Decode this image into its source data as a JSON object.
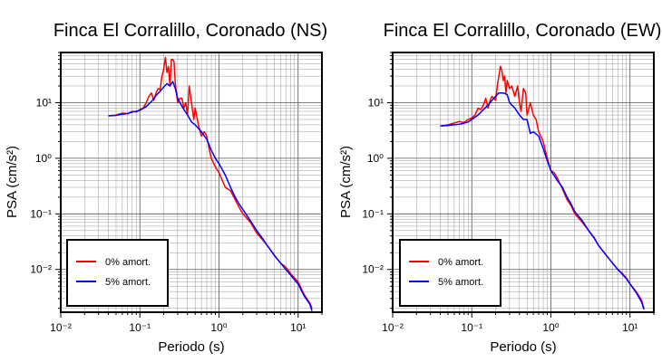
{
  "chart_data": [
    {
      "type": "line",
      "title": "Finca El Corralillo, Coronado (NS)",
      "xlabel": "Periodo (s)",
      "ylabel": "PSA (cm/s²)",
      "xscale": "log",
      "yscale": "log",
      "xlim": [
        0.01,
        20
      ],
      "ylim": [
        0.0017,
        80
      ],
      "xticks": [
        0.01,
        0.1,
        1,
        10
      ],
      "yticks": [
        0.01,
        0.1,
        1,
        10
      ],
      "grid": true,
      "legend_position": "bottom-left",
      "series": [
        {
          "name": "0% amort.",
          "color": "#ff0000",
          "x": [
            0.04,
            0.05,
            0.06,
            0.07,
            0.08,
            0.09,
            0.1,
            0.11,
            0.12,
            0.13,
            0.14,
            0.15,
            0.16,
            0.17,
            0.18,
            0.19,
            0.2,
            0.21,
            0.22,
            0.23,
            0.24,
            0.25,
            0.26,
            0.27,
            0.28,
            0.29,
            0.3,
            0.32,
            0.34,
            0.36,
            0.38,
            0.4,
            0.42,
            0.45,
            0.48,
            0.5,
            0.55,
            0.6,
            0.65,
            0.7,
            0.75,
            0.8,
            0.9,
            1.0,
            1.1,
            1.2,
            1.4,
            1.6,
            1.8,
            2.0,
            2.5,
            3.0,
            3.5,
            4.0,
            5.0,
            6.0,
            7.0,
            8.0,
            9.0,
            10.0,
            11.0,
            12.0,
            14.0,
            15.0
          ],
          "y": [
            5.8,
            6.0,
            6.5,
            6.3,
            7.0,
            6.8,
            7.5,
            8.0,
            10.0,
            13.0,
            15.0,
            11.0,
            15.0,
            18.0,
            17.0,
            30.0,
            40.0,
            65.0,
            35.0,
            45.0,
            20.0,
            60.0,
            60.0,
            55.0,
            22.0,
            15.0,
            10.0,
            12.0,
            12.0,
            8.0,
            10.0,
            6.0,
            20.0,
            10.0,
            5.0,
            8.0,
            4.0,
            2.5,
            3.0,
            2.5,
            1.5,
            1.0,
            0.7,
            0.55,
            0.4,
            0.3,
            0.26,
            0.18,
            0.13,
            0.1,
            0.07,
            0.045,
            0.035,
            0.028,
            0.018,
            0.013,
            0.011,
            0.0085,
            0.007,
            0.006,
            0.0045,
            0.0035,
            0.0025,
            0.002
          ]
        },
        {
          "name": "5% amort.",
          "color": "#0000ff",
          "x": [
            0.04,
            0.05,
            0.06,
            0.07,
            0.08,
            0.09,
            0.1,
            0.12,
            0.14,
            0.16,
            0.18,
            0.2,
            0.22,
            0.24,
            0.26,
            0.28,
            0.3,
            0.35,
            0.4,
            0.45,
            0.5,
            0.6,
            0.7,
            0.8,
            0.9,
            1.0,
            1.2,
            1.4,
            1.6,
            1.8,
            2.0,
            2.5,
            3.0,
            3.5,
            4.0,
            5.0,
            6.0,
            7.0,
            8.0,
            9.0,
            10.0,
            11.0,
            12.0,
            14.0,
            15.0
          ],
          "y": [
            5.8,
            5.9,
            6.2,
            6.4,
            6.8,
            7.0,
            7.3,
            8.5,
            10.5,
            13.5,
            16.0,
            19.0,
            22.0,
            20.0,
            24.0,
            18.0,
            12.0,
            8.0,
            6.0,
            4.5,
            4.0,
            3.0,
            2.2,
            1.4,
            1.0,
            0.8,
            0.5,
            0.3,
            0.2,
            0.15,
            0.12,
            0.075,
            0.05,
            0.037,
            0.028,
            0.018,
            0.013,
            0.01,
            0.008,
            0.0065,
            0.0055,
            0.0042,
            0.0033,
            0.0024,
            0.0018
          ]
        }
      ]
    },
    {
      "type": "line",
      "title": "Finca El Corralillo, Coronado (EW)",
      "xlabel": "Periodo (s)",
      "ylabel": "PSA (cm/s²)",
      "xscale": "log",
      "yscale": "log",
      "xlim": [
        0.01,
        20
      ],
      "ylim": [
        0.0017,
        80
      ],
      "xticks": [
        0.01,
        0.1,
        1,
        10
      ],
      "yticks": [
        0.01,
        0.1,
        1,
        10
      ],
      "grid": true,
      "legend_position": "bottom-left",
      "series": [
        {
          "name": "0% amort.",
          "color": "#ff0000",
          "x": [
            0.04,
            0.05,
            0.06,
            0.07,
            0.08,
            0.09,
            0.1,
            0.11,
            0.12,
            0.13,
            0.14,
            0.15,
            0.16,
            0.17,
            0.18,
            0.19,
            0.2,
            0.21,
            0.22,
            0.23,
            0.24,
            0.25,
            0.26,
            0.27,
            0.28,
            0.3,
            0.32,
            0.35,
            0.38,
            0.4,
            0.42,
            0.45,
            0.48,
            0.5,
            0.55,
            0.6,
            0.65,
            0.7,
            0.8,
            0.9,
            1.0,
            1.1,
            1.2,
            1.4,
            1.6,
            1.8,
            2.0,
            2.5,
            3.0,
            3.5,
            4.0,
            5.0,
            6.0,
            7.0,
            8.0,
            9.0,
            10.0,
            12.0,
            14.0,
            15.0
          ],
          "y": [
            3.8,
            4.0,
            4.3,
            4.6,
            4.4,
            5.0,
            5.3,
            6.0,
            8.0,
            7.5,
            9.0,
            12.0,
            8.0,
            11.0,
            13.0,
            12.0,
            11.0,
            20.0,
            30.0,
            45.0,
            38.0,
            25.0,
            30.0,
            15.0,
            25.0,
            18.0,
            20.0,
            13.0,
            20.0,
            10.0,
            7.0,
            18.0,
            15.0,
            6.0,
            10.0,
            6.0,
            5.0,
            3.0,
            2.0,
            1.0,
            0.6,
            0.55,
            0.45,
            0.28,
            0.18,
            0.14,
            0.1,
            0.07,
            0.05,
            0.038,
            0.027,
            0.018,
            0.013,
            0.01,
            0.0085,
            0.007,
            0.0055,
            0.004,
            0.0028,
            0.002
          ]
        },
        {
          "name": "5% amort.",
          "color": "#0000ff",
          "x": [
            0.04,
            0.05,
            0.06,
            0.07,
            0.08,
            0.09,
            0.1,
            0.12,
            0.14,
            0.16,
            0.18,
            0.2,
            0.22,
            0.25,
            0.28,
            0.3,
            0.35,
            0.4,
            0.45,
            0.5,
            0.55,
            0.6,
            0.7,
            0.8,
            0.9,
            1.0,
            1.2,
            1.4,
            1.6,
            1.8,
            2.0,
            2.5,
            3.0,
            3.5,
            4.0,
            5.0,
            6.0,
            7.0,
            8.0,
            9.0,
            10.0,
            12.0,
            14.0,
            15.0
          ],
          "y": [
            3.8,
            3.9,
            4.0,
            4.1,
            4.3,
            4.5,
            5.0,
            6.0,
            7.5,
            9.0,
            11.0,
            13.0,
            15.0,
            15.0,
            14.0,
            10.0,
            8.0,
            6.0,
            5.0,
            5.0,
            2.8,
            3.0,
            2.5,
            1.5,
            0.9,
            0.6,
            0.4,
            0.3,
            0.2,
            0.15,
            0.11,
            0.075,
            0.05,
            0.037,
            0.027,
            0.018,
            0.013,
            0.01,
            0.0082,
            0.0068,
            0.0055,
            0.0038,
            0.0026,
            0.0019
          ]
        }
      ]
    }
  ]
}
